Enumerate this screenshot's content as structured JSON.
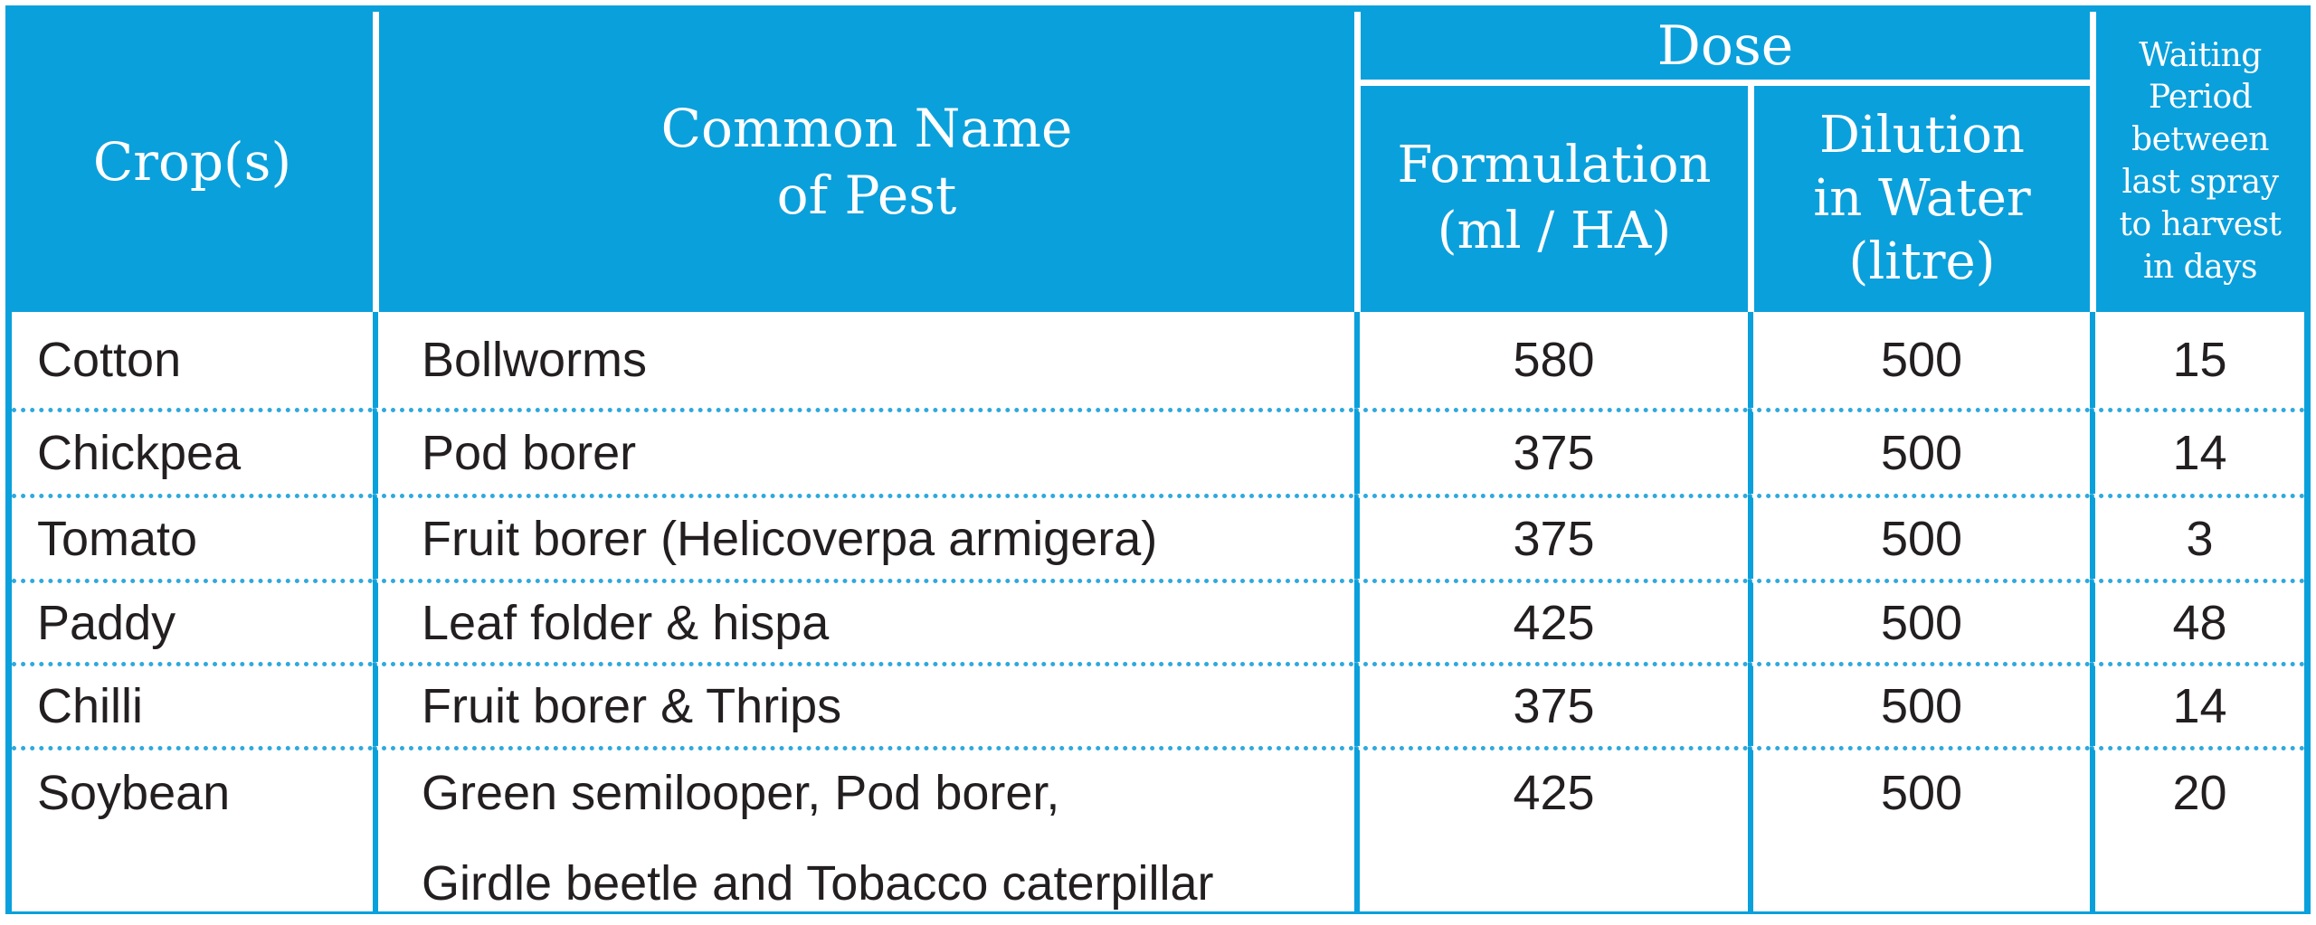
{
  "header_display": {
    "crop": "Crop(s)",
    "common_name": "Common Name\nof Pest",
    "dose": "Dose",
    "formulation": "Formulation\n(ml / HA)",
    "dilution": "Dilution\nin Water\n(litre)",
    "waiting": "Waiting\nPeriod\nbetween\nlast spray\nto harvest\nin days"
  },
  "chart_data": {
    "type": "table",
    "title": "Crop pesticide dose and waiting period table",
    "columns": [
      "Crop(s)",
      "Common Name of Pest",
      "Dose - Formulation (ml / HA)",
      "Dose - Dilution in Water (litre)",
      "Waiting Period between last spray to harvest in days"
    ],
    "rows": [
      {
        "crop": "Cotton",
        "pest_lines": [
          "Bollworms"
        ],
        "formulation_ml_ha": 580,
        "dilution_litre": 500,
        "waiting_days": 15
      },
      {
        "crop": "Chickpea",
        "pest_lines": [
          "Pod borer"
        ],
        "formulation_ml_ha": 375,
        "dilution_litre": 500,
        "waiting_days": 14
      },
      {
        "crop": "Tomato",
        "pest_lines": [
          "Fruit borer (Helicoverpa armigera)"
        ],
        "formulation_ml_ha": 375,
        "dilution_litre": 500,
        "waiting_days": 3
      },
      {
        "crop": "Paddy",
        "pest_lines": [
          "Leaf folder & hispa"
        ],
        "formulation_ml_ha": 425,
        "dilution_litre": 500,
        "waiting_days": 48
      },
      {
        "crop": "Chilli",
        "pest_lines": [
          "Fruit borer & Thrips"
        ],
        "formulation_ml_ha": 375,
        "dilution_litre": 500,
        "waiting_days": 14
      },
      {
        "crop": "Soybean",
        "pest_lines": [
          "Green semilooper, Pod borer,",
          "Girdle beetle and Tobacco caterpillar"
        ],
        "formulation_ml_ha": 425,
        "dilution_litre": 500,
        "waiting_days": 20
      }
    ]
  },
  "colors": {
    "header_blue": "#0aa0dc",
    "body_text": "#231f20",
    "background": "#ffffff"
  }
}
